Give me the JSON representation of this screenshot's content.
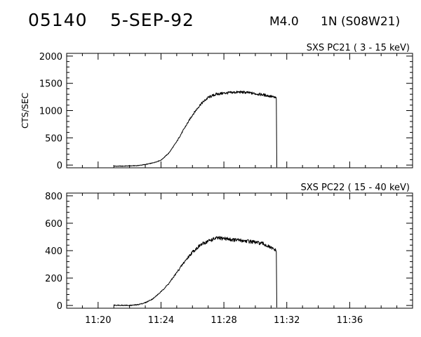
{
  "header": {
    "event_id": "05140",
    "date": "5-SEP-92",
    "flare_class": "M4.0",
    "optical_class": "1N",
    "location": "(S08W21)"
  },
  "colors": {
    "background": "#ffffff",
    "ink": "#000000"
  },
  "chart_data": [
    {
      "type": "line",
      "title": "SXS PC21  (  3 - 15 keV)",
      "ylabel": "CTS/SEC",
      "xlabel": "",
      "xlim": [
        "11:18",
        "11:40"
      ],
      "ylim": [
        -50,
        2050
      ],
      "yticks": [
        0,
        500,
        1000,
        1500,
        2000
      ],
      "xticks": [
        "11:20",
        "11:24",
        "11:28",
        "11:32",
        "11:36"
      ],
      "xtick_labels_shown": false,
      "grid": false,
      "series": [
        {
          "x": [
            "11:21:00",
            "11:21:30",
            "11:22:00",
            "11:22:30",
            "11:23:00",
            "11:23:30",
            "11:24:00",
            "11:24:30",
            "11:25:00",
            "11:25:30",
            "11:26:00",
            "11:26:30",
            "11:27:00",
            "11:27:30",
            "11:28:00",
            "11:28:30",
            "11:29:00",
            "11:29:30",
            "11:30:00",
            "11:30:30",
            "11:31:00",
            "11:31:20",
            "11:31:22"
          ],
          "values": [
            -20,
            -20,
            -15,
            -10,
            10,
            40,
            90,
            220,
            430,
            680,
            920,
            1110,
            1240,
            1300,
            1320,
            1330,
            1340,
            1330,
            1310,
            1290,
            1260,
            1230,
            -40
          ]
        }
      ]
    },
    {
      "type": "line",
      "title": "SXS PC22  ( 15 - 40 keV)",
      "ylabel": "",
      "xlabel": "",
      "xlim": [
        "11:18",
        "11:40"
      ],
      "ylim": [
        -20,
        820
      ],
      "yticks": [
        0,
        200,
        400,
        600,
        800
      ],
      "xticks": [
        "11:20",
        "11:24",
        "11:28",
        "11:32",
        "11:36"
      ],
      "xtick_labels_shown": true,
      "grid": false,
      "series": [
        {
          "x": [
            "11:21:00",
            "11:21:30",
            "11:22:00",
            "11:22:30",
            "11:23:00",
            "11:23:30",
            "11:24:00",
            "11:24:30",
            "11:25:00",
            "11:25:30",
            "11:26:00",
            "11:26:30",
            "11:27:00",
            "11:27:30",
            "11:28:00",
            "11:28:30",
            "11:29:00",
            "11:29:30",
            "11:30:00",
            "11:30:30",
            "11:31:00",
            "11:31:20",
            "11:31:22"
          ],
          "values": [
            2,
            2,
            0,
            5,
            20,
            50,
            100,
            160,
            240,
            320,
            390,
            440,
            470,
            490,
            490,
            480,
            475,
            470,
            460,
            450,
            420,
            400,
            -15
          ]
        }
      ]
    }
  ]
}
